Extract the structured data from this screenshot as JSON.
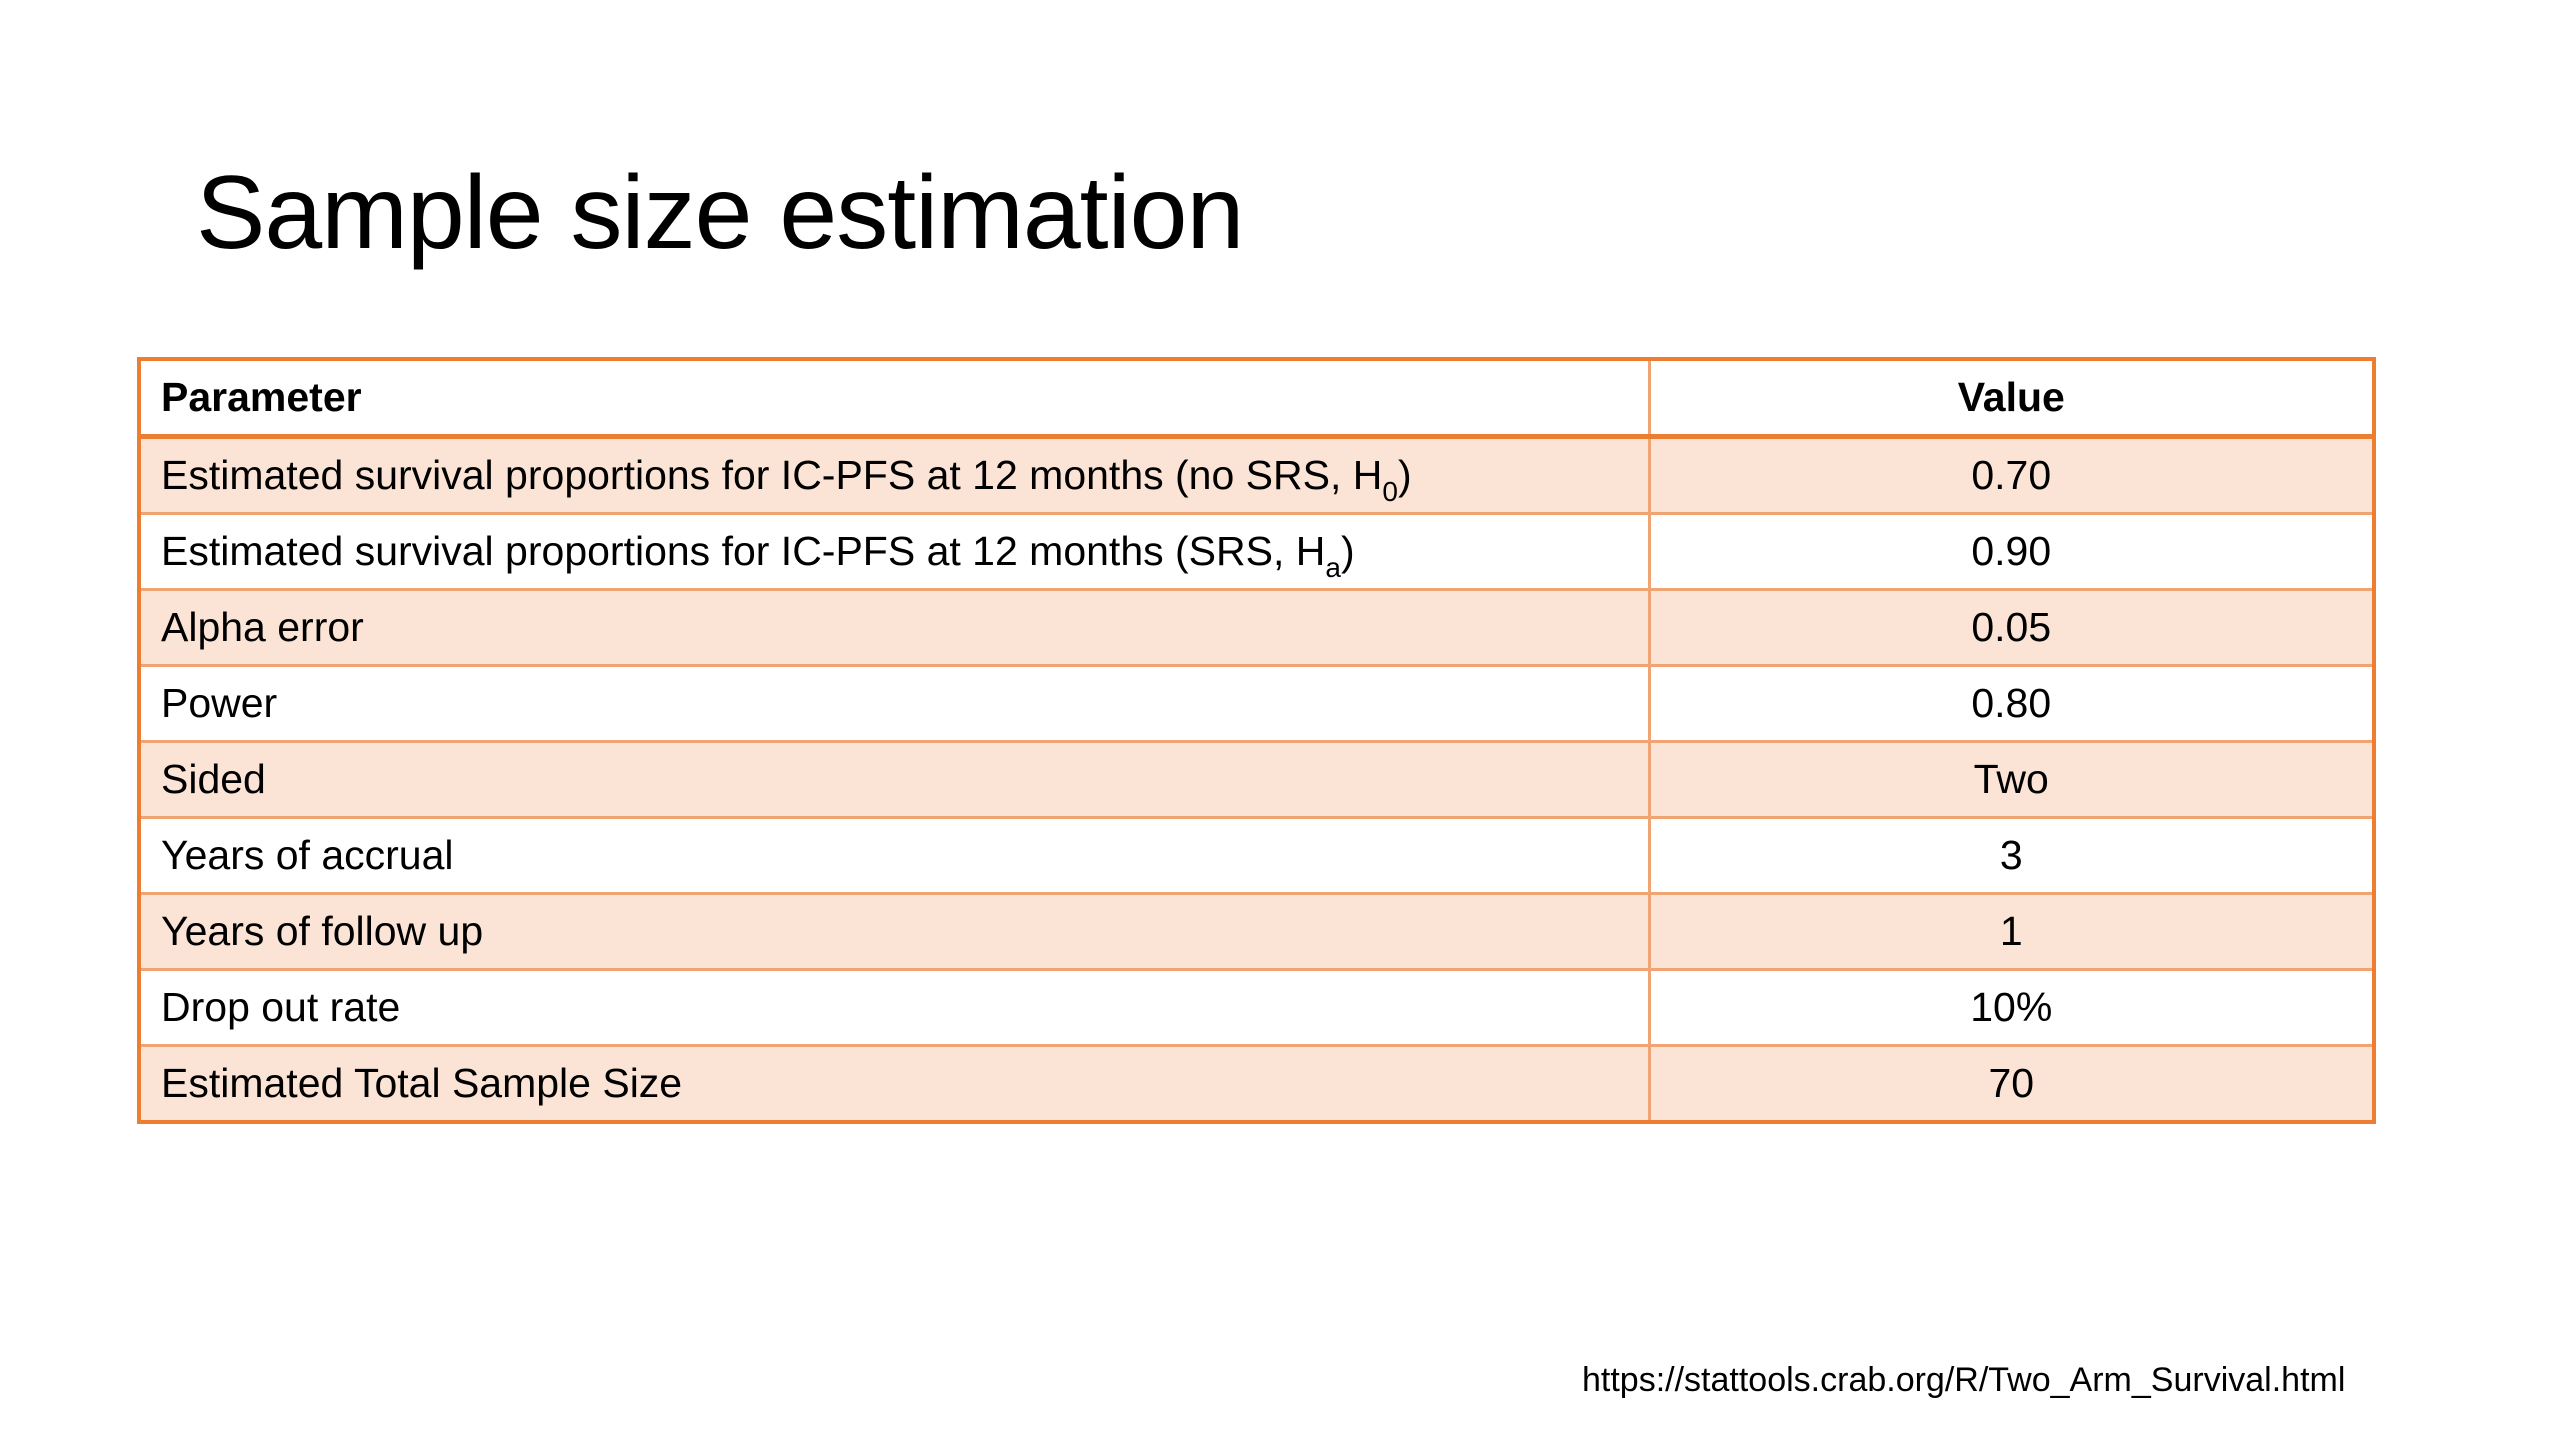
{
  "slide": {
    "title": "Sample size estimation",
    "source_link": "https://stattools.crab.org/R/Two_Arm_Survival.html"
  },
  "table": {
    "headers": {
      "parameter": "Parameter",
      "value": "Value"
    },
    "rows": [
      {
        "parameter_main": "Estimated survival proportions for IC-PFS at 12 months (no SRS, H",
        "parameter_sub": "0",
        "parameter_tail": ")",
        "value": "0.70"
      },
      {
        "parameter_main": "Estimated survival proportions for IC-PFS at 12 months (SRS, H",
        "parameter_sub": "a",
        "parameter_tail": ")",
        "value": "0.90"
      },
      {
        "parameter_main": "Alpha error",
        "value": "0.05"
      },
      {
        "parameter_main": "Power",
        "value": "0.80"
      },
      {
        "parameter_main": "Sided",
        "value": "Two"
      },
      {
        "parameter_main": "Years of accrual",
        "value": "3"
      },
      {
        "parameter_main": "Years of follow up",
        "value": "1"
      },
      {
        "parameter_main": "Drop out rate",
        "value": "10%"
      },
      {
        "parameter_main": "Estimated Total Sample Size",
        "value": "70"
      }
    ]
  },
  "colors": {
    "border_accent": "#ed7d31",
    "border_light": "#f0a473",
    "band_fill": "#fbe4d5"
  }
}
